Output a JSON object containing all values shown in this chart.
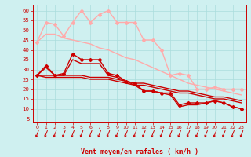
{
  "background_color": "#cff0f0",
  "grid_color": "#aadddd",
  "xlabel": "Vent moyen/en rafales ( km/h )",
  "xlabel_color": "#cc0000",
  "xlabel_fontsize": 6,
  "yticks": [
    5,
    10,
    15,
    20,
    25,
    30,
    35,
    40,
    45,
    50,
    55,
    60
  ],
  "xticks": [
    0,
    1,
    2,
    3,
    4,
    5,
    6,
    7,
    8,
    9,
    10,
    11,
    12,
    13,
    14,
    15,
    16,
    17,
    18,
    19,
    20,
    21,
    22,
    23
  ],
  "ylim": [
    3,
    63
  ],
  "xlim": [
    -0.5,
    23.5
  ],
  "lines": [
    {
      "y": [
        44,
        54,
        53,
        47,
        54,
        60,
        54,
        58,
        60,
        54,
        54,
        54,
        45,
        45,
        40,
        27,
        28,
        27,
        20,
        20,
        21,
        20,
        20,
        20
      ],
      "color": "#ffaaaa",
      "lw": 1.0,
      "marker": "D",
      "ms": 2.0,
      "zorder": 2
    },
    {
      "y": [
        44,
        48,
        48,
        46,
        45,
        44,
        43,
        41,
        40,
        38,
        36,
        35,
        33,
        31,
        29,
        27,
        25,
        23,
        22,
        21,
        20,
        19,
        18,
        17
      ],
      "color": "#ffaaaa",
      "lw": 1.0,
      "marker": null,
      "ms": 0,
      "zorder": 1
    },
    {
      "y": [
        27,
        32,
        27,
        28,
        38,
        35,
        35,
        35,
        28,
        27,
        24,
        23,
        19,
        19,
        18,
        18,
        12,
        13,
        13,
        13,
        14,
        13,
        11,
        10
      ],
      "color": "#cc0000",
      "lw": 1.0,
      "marker": "D",
      "ms": 2.0,
      "zorder": 4
    },
    {
      "y": [
        27,
        31,
        27,
        27,
        35,
        33,
        33,
        33,
        27,
        26,
        24,
        22,
        19,
        19,
        18,
        17,
        11,
        12,
        12,
        13,
        14,
        13,
        11,
        10
      ],
      "color": "#cc0000",
      "lw": 1.0,
      "marker": null,
      "ms": 0,
      "zorder": 3
    },
    {
      "y": [
        27,
        26,
        26,
        26,
        26,
        26,
        25,
        25,
        25,
        24,
        23,
        22,
        22,
        21,
        20,
        19,
        18,
        18,
        17,
        16,
        15,
        15,
        14,
        13
      ],
      "color": "#cc0000",
      "lw": 1.0,
      "marker": null,
      "ms": 0,
      "zorder": 3
    },
    {
      "y": [
        27,
        27,
        27,
        27,
        27,
        27,
        26,
        26,
        26,
        25,
        24,
        23,
        23,
        22,
        21,
        20,
        19,
        19,
        18,
        17,
        16,
        16,
        15,
        14
      ],
      "color": "#cc0000",
      "lw": 1.0,
      "marker": null,
      "ms": 0,
      "zorder": 3
    }
  ],
  "tick_fontsize": 5,
  "tick_color": "#cc0000"
}
